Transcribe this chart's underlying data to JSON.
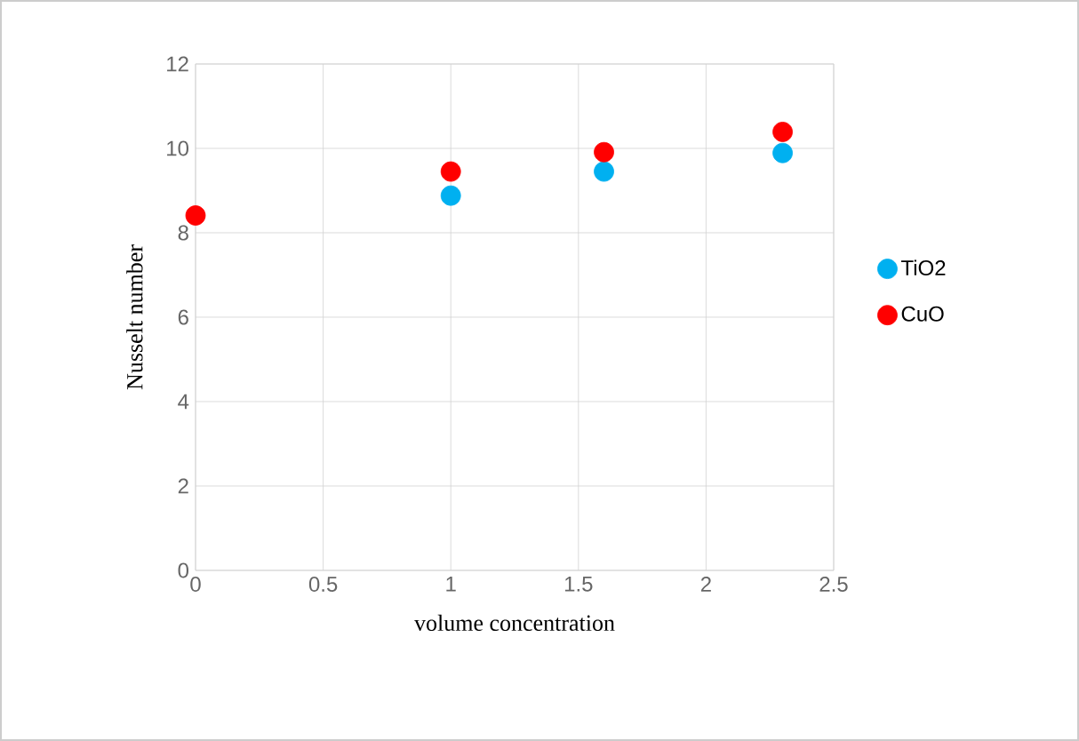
{
  "chart_data": {
    "type": "scatter",
    "xlabel": "volume concentration",
    "ylabel": "Nusselt number",
    "xlim": [
      0,
      2.5
    ],
    "ylim": [
      0,
      12
    ],
    "xticks": [
      0,
      0.5,
      1,
      1.5,
      2,
      2.5
    ],
    "yticks": [
      0,
      2,
      4,
      6,
      8,
      10,
      12
    ],
    "grid": true,
    "legend": "right",
    "marker": "circle",
    "series": [
      {
        "name": "TiO2",
        "color": "#00b0f0",
        "x": [
          1,
          1.6,
          2.3
        ],
        "values": [
          8.88,
          9.45,
          9.89
        ]
      },
      {
        "name": "CuO",
        "color": "#ff0000",
        "x": [
          0,
          1,
          1.6,
          2.3
        ],
        "values": [
          8.41,
          9.45,
          9.91,
          10.39
        ]
      }
    ]
  }
}
